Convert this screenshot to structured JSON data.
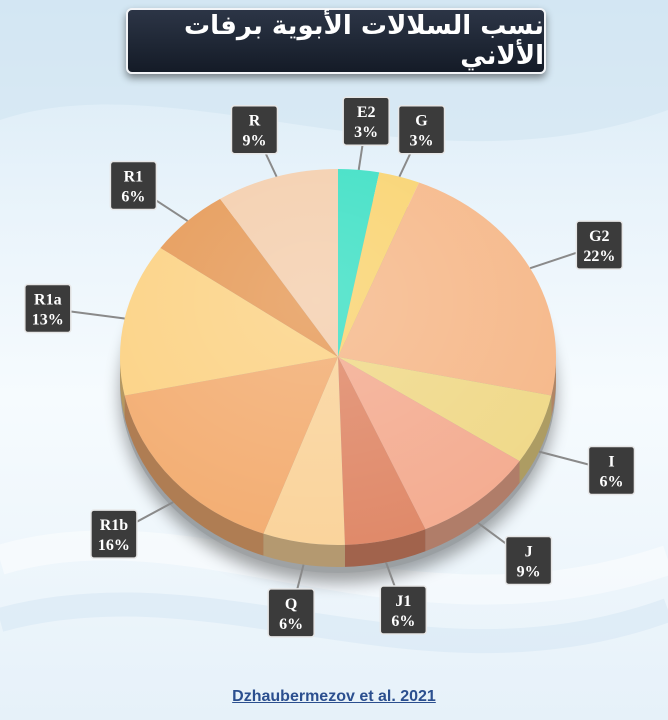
{
  "title": "نسب السلالات الأبوية برفات الألاني",
  "source": "Dzhaubermezov et al. 2021",
  "chart_data": {
    "type": "pie",
    "title": "نسب السلالات الأبوية برفات الألاني",
    "slices": [
      {
        "label": "E2",
        "value": 3,
        "display": "3%",
        "color": "#3fe0c5"
      },
      {
        "label": "G",
        "value": 3,
        "display": "3%",
        "color": "#f9d472"
      },
      {
        "label": "G2",
        "value": 22,
        "display": "22%",
        "color": "#f6b98b"
      },
      {
        "label": "I",
        "value": 6,
        "display": "6%",
        "color": "#f0d98a"
      },
      {
        "label": "J",
        "value": 9,
        "display": "9%",
        "color": "#f4ad92"
      },
      {
        "label": "J1",
        "value": 6,
        "display": "6%",
        "color": "#e08a6a"
      },
      {
        "label": "Q",
        "value": 6,
        "display": "6%",
        "color": "#fad49c"
      },
      {
        "label": "R1b",
        "value": 16,
        "display": "16%",
        "color": "#f3ae73"
      },
      {
        "label": "R1a",
        "value": 13,
        "display": "13%",
        "color": "#fcd386"
      },
      {
        "label": "R1",
        "value": 6,
        "display": "6%",
        "color": "#e69b59"
      },
      {
        "label": "R",
        "value": 9,
        "display": "9%",
        "color": "#f4cfae"
      }
    ]
  }
}
